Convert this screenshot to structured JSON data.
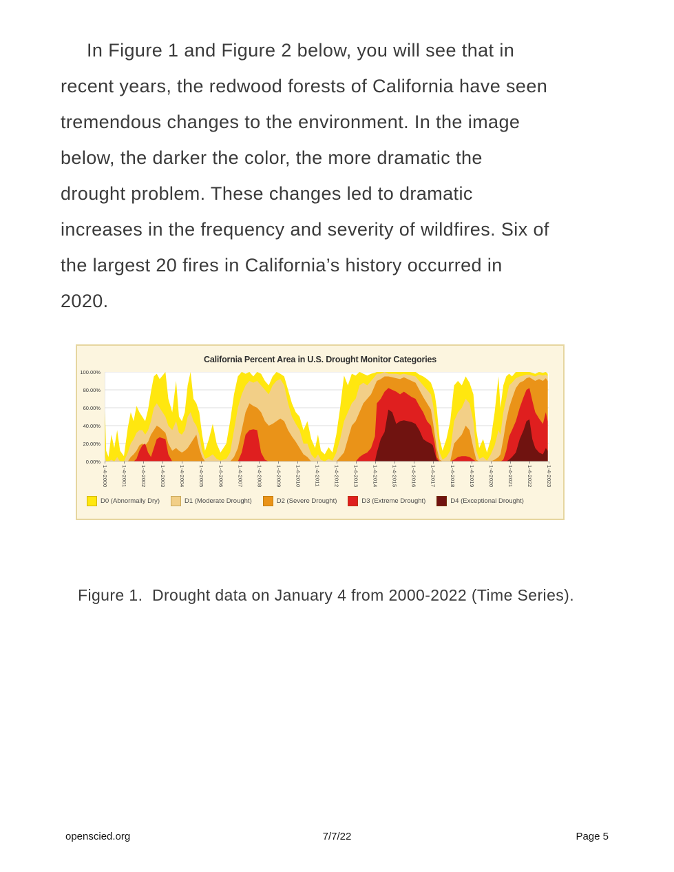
{
  "paragraph": {
    "lines": [
      "In Figure 1 and Figure 2 below, you will see that in",
      "recent years, the redwood forests of California have seen",
      "tremendous changes to the environment. In the image",
      "below, the darker the color, the more dramatic the",
      "drought problem. These changes led to dramatic",
      "increases in the frequency and severity of wildfires. Six of",
      "the largest 20 fires in California’s history occurred in",
      "2020."
    ]
  },
  "figure_style": {
    "background": "#fcf5df",
    "border_color": "#e6d6a0",
    "gridline_color": "#dddddd",
    "axis_color": "#999999"
  },
  "chart_data": {
    "type": "area",
    "title": "California Percent Area in U.S. Drought Monitor Categories",
    "xlabel": "",
    "ylabel": "",
    "ylim": [
      0,
      100
    ],
    "grid": true,
    "legend_position": "bottom",
    "y_tick_labels": [
      "100.00%",
      "80.00%",
      "60.00%",
      "40.00%",
      "20.00%",
      "0.00%"
    ],
    "x_range": [
      2000,
      2023
    ],
    "x_tick_labels": [
      "1-4-2000",
      "1-4-2001",
      "1-4-2002",
      "1-4-2003",
      "1-4-2004",
      "1-4-2005",
      "1-4-2006",
      "1-4-2007",
      "1-4-2008",
      "1-4-2009",
      "1-4-2010",
      "1-4-2011",
      "1-4-2012",
      "1-4-2013",
      "1-4-2014",
      "1-4-2015",
      "1-4-2016",
      "1-4-2017",
      "1-4-2018",
      "1-4-2019",
      "1-4-2020",
      "1-4-2021",
      "1-4-2022",
      "1-4-2023"
    ],
    "legend": [
      {
        "label": "D0 (Abnormally Dry)",
        "color": "#ffe70f"
      },
      {
        "label": "D1 (Moderate Drought)",
        "color": "#f2cf87"
      },
      {
        "label": "D2 (Severe Drought)",
        "color": "#ea9318"
      },
      {
        "label": "D3 (Extreme Drought)",
        "color": "#df1f1f"
      },
      {
        "label": "D4 (Exceptional Drought)",
        "color": "#701310"
      }
    ],
    "stacking": "overlay-cumulative-percent-area",
    "points_format": [
      "year_decimal",
      "D0_or_worse",
      "D1_or_worse",
      "D2_or_worse",
      "D3_or_worse",
      "D4"
    ],
    "points": [
      [
        2000.0,
        70,
        8,
        0,
        0,
        0
      ],
      [
        2000.08,
        12,
        0,
        0,
        0,
        0
      ],
      [
        2000.2,
        5,
        0,
        0,
        0,
        0
      ],
      [
        2000.35,
        30,
        2,
        0,
        0,
        0
      ],
      [
        2000.5,
        15,
        0,
        0,
        0,
        0
      ],
      [
        2000.65,
        35,
        5,
        0,
        0,
        0
      ],
      [
        2000.8,
        12,
        0,
        0,
        0,
        0
      ],
      [
        2001.0,
        6,
        0,
        0,
        0,
        0
      ],
      [
        2001.2,
        38,
        10,
        0,
        0,
        0
      ],
      [
        2001.35,
        55,
        20,
        5,
        0,
        0
      ],
      [
        2001.5,
        45,
        25,
        8,
        0,
        0
      ],
      [
        2001.65,
        62,
        32,
        12,
        3,
        0
      ],
      [
        2001.8,
        55,
        35,
        18,
        12,
        0
      ],
      [
        2001.95,
        50,
        35,
        20,
        18,
        0
      ],
      [
        2002.1,
        45,
        30,
        18,
        20,
        0
      ],
      [
        2002.25,
        58,
        35,
        22,
        10,
        0
      ],
      [
        2002.4,
        78,
        45,
        30,
        5,
        0
      ],
      [
        2002.55,
        95,
        60,
        35,
        15,
        0
      ],
      [
        2002.7,
        98,
        65,
        40,
        25,
        0
      ],
      [
        2002.85,
        92,
        60,
        38,
        27,
        0
      ],
      [
        2003.0,
        96,
        55,
        35,
        26,
        0
      ],
      [
        2003.15,
        100,
        50,
        32,
        25,
        0
      ],
      [
        2003.3,
        70,
        40,
        20,
        8,
        0
      ],
      [
        2003.5,
        55,
        35,
        12,
        0,
        0
      ],
      [
        2003.7,
        90,
        45,
        15,
        0,
        0
      ],
      [
        2003.85,
        50,
        32,
        12,
        0,
        0
      ],
      [
        2004.0,
        45,
        30,
        10,
        0,
        0
      ],
      [
        2004.15,
        55,
        35,
        12,
        0,
        0
      ],
      [
        2004.3,
        85,
        50,
        15,
        0,
        0
      ],
      [
        2004.45,
        100,
        55,
        20,
        0,
        0
      ],
      [
        2004.6,
        70,
        45,
        25,
        0,
        0
      ],
      [
        2004.75,
        65,
        40,
        30,
        0,
        0
      ],
      [
        2004.9,
        55,
        30,
        15,
        0,
        0
      ],
      [
        2005.05,
        30,
        12,
        5,
        0,
        0
      ],
      [
        2005.2,
        12,
        3,
        0,
        0,
        0
      ],
      [
        2005.4,
        25,
        5,
        0,
        0,
        0
      ],
      [
        2005.6,
        42,
        8,
        0,
        0,
        0
      ],
      [
        2005.8,
        20,
        3,
        0,
        0,
        0
      ],
      [
        2006.0,
        10,
        1,
        0,
        0,
        0
      ],
      [
        2006.3,
        20,
        3,
        0,
        0,
        0
      ],
      [
        2006.5,
        45,
        10,
        0,
        0,
        0
      ],
      [
        2006.7,
        75,
        35,
        5,
        0,
        0
      ],
      [
        2006.9,
        95,
        60,
        15,
        0,
        0
      ],
      [
        2007.1,
        100,
        75,
        35,
        10,
        0
      ],
      [
        2007.3,
        98,
        85,
        55,
        30,
        0
      ],
      [
        2007.5,
        100,
        90,
        65,
        35,
        0
      ],
      [
        2007.7,
        95,
        88,
        62,
        36,
        0
      ],
      [
        2007.9,
        100,
        90,
        60,
        35,
        0
      ],
      [
        2008.1,
        98,
        85,
        55,
        10,
        0
      ],
      [
        2008.3,
        90,
        80,
        45,
        2,
        0
      ],
      [
        2008.5,
        85,
        75,
        40,
        0,
        0
      ],
      [
        2008.7,
        95,
        85,
        42,
        0,
        0
      ],
      [
        2008.9,
        100,
        90,
        45,
        0,
        0
      ],
      [
        2009.1,
        98,
        92,
        48,
        0,
        0
      ],
      [
        2009.3,
        95,
        85,
        45,
        0,
        0
      ],
      [
        2009.5,
        80,
        65,
        35,
        0,
        0
      ],
      [
        2009.7,
        65,
        50,
        28,
        0,
        0
      ],
      [
        2009.9,
        55,
        42,
        22,
        0,
        0
      ],
      [
        2010.1,
        50,
        35,
        15,
        0,
        0
      ],
      [
        2010.3,
        35,
        20,
        8,
        0,
        0
      ],
      [
        2010.5,
        45,
        20,
        5,
        0,
        0
      ],
      [
        2010.7,
        25,
        8,
        0,
        0,
        0
      ],
      [
        2010.9,
        15,
        3,
        0,
        0,
        0
      ],
      [
        2011.05,
        30,
        8,
        0,
        0,
        0
      ],
      [
        2011.2,
        12,
        2,
        0,
        0,
        0
      ],
      [
        2011.4,
        8,
        0,
        0,
        0,
        0
      ],
      [
        2011.6,
        16,
        3,
        0,
        0,
        0
      ],
      [
        2011.8,
        10,
        1,
        0,
        0,
        0
      ],
      [
        2012.0,
        30,
        10,
        0,
        0,
        0
      ],
      [
        2012.2,
        60,
        25,
        5,
        0,
        0
      ],
      [
        2012.4,
        96,
        45,
        10,
        0,
        0
      ],
      [
        2012.6,
        85,
        55,
        25,
        0,
        0
      ],
      [
        2012.8,
        98,
        65,
        40,
        0,
        0
      ],
      [
        2013.0,
        96,
        70,
        45,
        0,
        0
      ],
      [
        2013.2,
        100,
        85,
        55,
        5,
        0
      ],
      [
        2013.4,
        98,
        88,
        65,
        8,
        0
      ],
      [
        2013.6,
        96,
        85,
        70,
        10,
        0
      ],
      [
        2013.8,
        98,
        90,
        75,
        15,
        0
      ],
      [
        2014.0,
        99,
        95,
        85,
        28,
        0
      ],
      [
        2014.1,
        100,
        98,
        90,
        65,
        10
      ],
      [
        2014.3,
        100,
        98,
        92,
        70,
        25
      ],
      [
        2014.5,
        100,
        100,
        95,
        78,
        33
      ],
      [
        2014.7,
        100,
        98,
        95,
        82,
        58
      ],
      [
        2014.9,
        100,
        98,
        94,
        80,
        55
      ],
      [
        2015.1,
        100,
        98,
        93,
        78,
        42
      ],
      [
        2015.3,
        100,
        97,
        92,
        75,
        45
      ],
      [
        2015.5,
        100,
        98,
        94,
        78,
        46
      ],
      [
        2015.7,
        100,
        97,
        92,
        75,
        45
      ],
      [
        2015.9,
        100,
        96,
        90,
        72,
        44
      ],
      [
        2016.1,
        100,
        95,
        88,
        70,
        42
      ],
      [
        2016.3,
        97,
        90,
        80,
        62,
        35
      ],
      [
        2016.5,
        95,
        85,
        72,
        55,
        25
      ],
      [
        2016.7,
        92,
        80,
        65,
        45,
        22
      ],
      [
        2016.9,
        88,
        75,
        58,
        40,
        20
      ],
      [
        2017.0,
        82,
        65,
        45,
        30,
        18
      ],
      [
        2017.1,
        75,
        50,
        30,
        20,
        10
      ],
      [
        2017.2,
        60,
        35,
        15,
        5,
        2
      ],
      [
        2017.35,
        25,
        10,
        2,
        0,
        0
      ],
      [
        2017.5,
        12,
        2,
        0,
        0,
        0
      ],
      [
        2017.7,
        25,
        5,
        0,
        0,
        0
      ],
      [
        2017.9,
        45,
        12,
        0,
        0,
        0
      ],
      [
        2018.1,
        85,
        45,
        20,
        2,
        0
      ],
      [
        2018.3,
        90,
        55,
        25,
        5,
        0
      ],
      [
        2018.5,
        85,
        60,
        30,
        6,
        0
      ],
      [
        2018.7,
        95,
        70,
        40,
        6,
        0
      ],
      [
        2018.9,
        88,
        65,
        35,
        5,
        0
      ],
      [
        2019.1,
        75,
        45,
        15,
        2,
        0
      ],
      [
        2019.25,
        35,
        12,
        2,
        0,
        0
      ],
      [
        2019.4,
        15,
        3,
        0,
        0,
        0
      ],
      [
        2019.6,
        25,
        5,
        0,
        0,
        0
      ],
      [
        2019.8,
        10,
        1,
        0,
        0,
        0
      ],
      [
        2020.0,
        25,
        8,
        0,
        0,
        0
      ],
      [
        2020.2,
        55,
        18,
        2,
        0,
        0
      ],
      [
        2020.4,
        95,
        35,
        5,
        0,
        0
      ],
      [
        2020.5,
        60,
        30,
        8,
        0,
        0
      ],
      [
        2020.65,
        85,
        55,
        25,
        2,
        0
      ],
      [
        2020.8,
        95,
        70,
        45,
        12,
        0
      ],
      [
        2020.95,
        98,
        85,
        60,
        28,
        2
      ],
      [
        2021.1,
        95,
        88,
        70,
        35,
        5
      ],
      [
        2021.3,
        100,
        93,
        82,
        45,
        10
      ],
      [
        2021.5,
        100,
        95,
        88,
        60,
        25
      ],
      [
        2021.7,
        100,
        96,
        90,
        72,
        35
      ],
      [
        2021.85,
        100,
        97,
        93,
        80,
        45
      ],
      [
        2022.0,
        100,
        97,
        94,
        82,
        47
      ],
      [
        2022.15,
        99,
        96,
        92,
        68,
        25
      ],
      [
        2022.3,
        98,
        95,
        90,
        55,
        15
      ],
      [
        2022.5,
        100,
        97,
        92,
        48,
        10
      ],
      [
        2022.7,
        99,
        96,
        90,
        42,
        8
      ],
      [
        2022.85,
        100,
        97,
        93,
        55,
        15
      ],
      [
        2022.95,
        98,
        95,
        90,
        45,
        12
      ]
    ]
  },
  "caption": {
    "text": "Figure 1.  Drought data on January 4 from 2000-2022 (Time Series)."
  },
  "footer": {
    "left": "openscied.org",
    "center": "7/7/22",
    "right": "Page 5"
  }
}
